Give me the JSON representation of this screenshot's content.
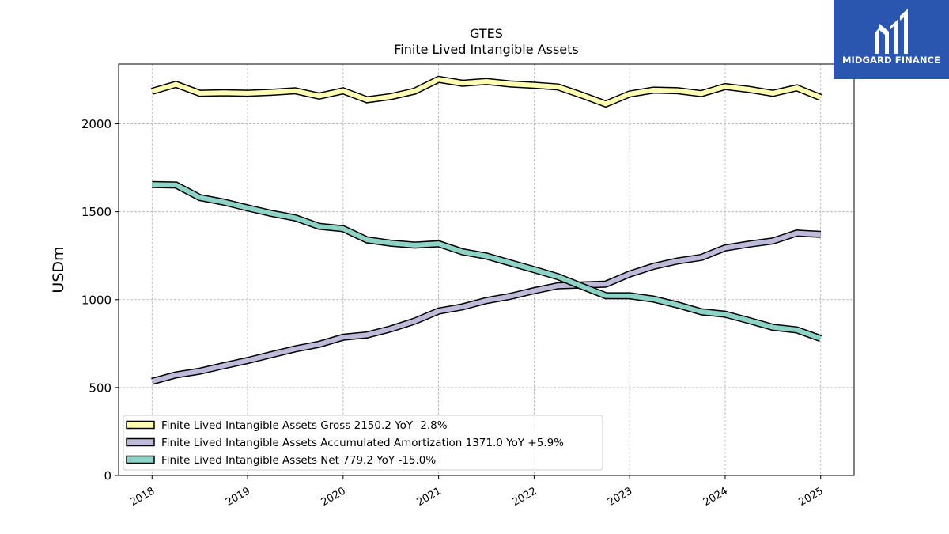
{
  "brand": {
    "name": "MIDGARD FINANCE",
    "logo_color": "#2a56b0"
  },
  "chart_data": {
    "type": "line",
    "title": "GTES",
    "subtitle": "Finite Lived Intangible Assets",
    "xlabel": "",
    "ylabel": "USDm",
    "xlim": [
      2017.65,
      2025.35
    ],
    "ylim": [
      0,
      2340
    ],
    "x_ticks": [
      2018,
      2019,
      2020,
      2021,
      2022,
      2023,
      2024,
      2025
    ],
    "x_tick_labels": [
      "2018",
      "2019",
      "2020",
      "2021",
      "2022",
      "2023",
      "2024",
      "2025"
    ],
    "y_ticks": [
      0,
      500,
      1000,
      1500,
      2000
    ],
    "y_tick_labels": [
      "0",
      "500",
      "1000",
      "1500",
      "2000"
    ],
    "grid": true,
    "legend_position": "lower-left",
    "x": [
      2018.0,
      2018.25,
      2018.5,
      2018.75,
      2019.0,
      2019.25,
      2019.5,
      2019.75,
      2020.0,
      2020.25,
      2020.5,
      2020.75,
      2021.0,
      2021.25,
      2021.5,
      2021.75,
      2022.0,
      2022.25,
      2022.5,
      2022.75,
      2023.0,
      2023.25,
      2023.5,
      2023.75,
      2024.0,
      2024.25,
      2024.5,
      2024.75,
      2025.0
    ],
    "series": [
      {
        "name": "Finite Lived Intangible Assets Gross",
        "legend": "Finite Lived Intangible Assets Gross  2150.2 YoY -2.8%",
        "color": "#ffffb3",
        "values": [
          2185,
          2225,
          2174,
          2177,
          2174,
          2180,
          2188,
          2158,
          2188,
          2137,
          2155,
          2186,
          2253,
          2231,
          2241,
          2227,
          2220,
          2210,
          2163,
          2113,
          2170,
          2192,
          2189,
          2172,
          2212,
          2196,
          2174,
          2205,
          2150
        ]
      },
      {
        "name": "Finite Lived Intangible Assets Accumulated Amortization",
        "legend": "Finite Lived Intangible Assets Accumulated Amortization  1371.0 YoY +5.9%",
        "color": "#bebada",
        "values": [
          535,
          572,
          593,
          624,
          654,
          687,
          720,
          746,
          786,
          799,
          834,
          878,
          935,
          959,
          995,
          1019,
          1051,
          1079,
          1083,
          1088,
          1146,
          1190,
          1220,
          1240,
          1294,
          1316,
          1334,
          1379,
          1371
        ]
      },
      {
        "name": "Finite Lived Intangible Assets Net",
        "legend": "Finite Lived Intangible Assets Net  779.2 YoY -15.0%",
        "color": "#8dd3c7",
        "values": [
          1655,
          1652,
          1581,
          1555,
          1522,
          1491,
          1465,
          1417,
          1404,
          1340,
          1321,
          1310,
          1318,
          1272,
          1248,
          1209,
          1171,
          1131,
          1076,
          1023,
          1022,
          1003,
          970,
          931,
          917,
          881,
          843,
          828,
          779
        ]
      }
    ]
  }
}
